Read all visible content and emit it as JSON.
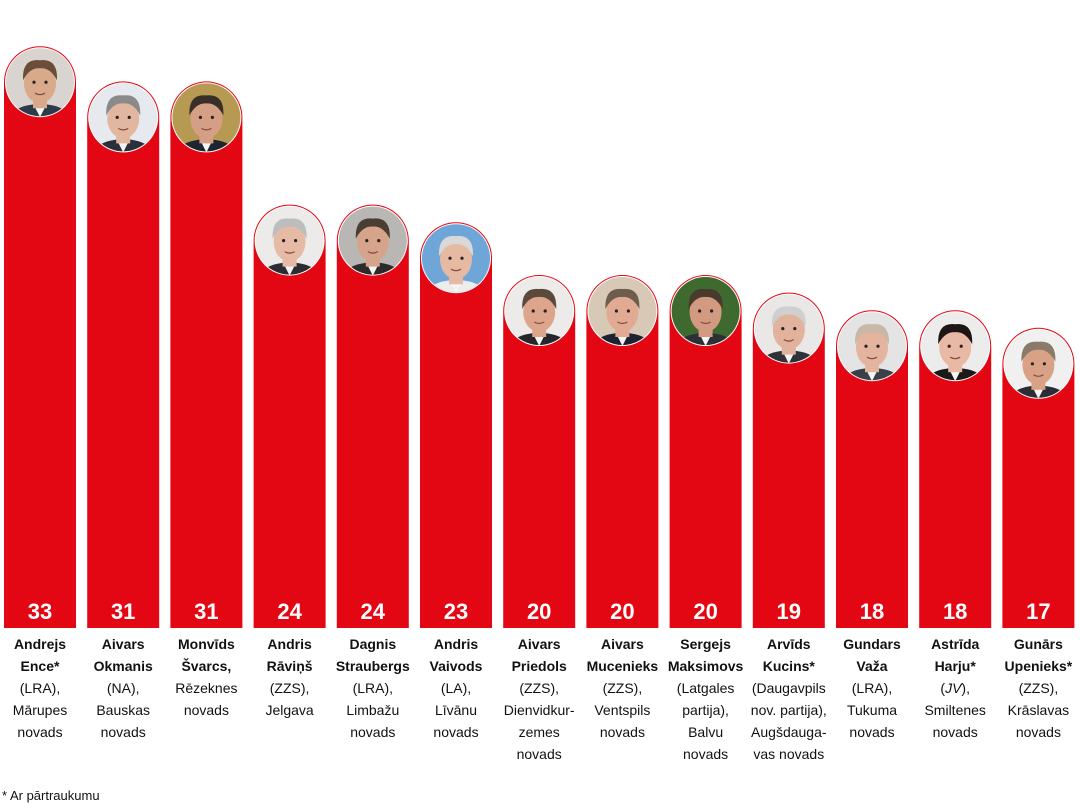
{
  "chart_data": {
    "type": "bar",
    "title": "",
    "xlabel": "",
    "ylabel": "",
    "ylim": [
      0,
      33
    ],
    "bar_color": "#e30613",
    "categories": [
      "Andrejs Ence*",
      "Aivars Okmanis",
      "Monvīds Švarcs,",
      "Andris Rāviņš",
      "Dagnis Straubergs",
      "Andris Vaivods",
      "Aivars Priedols",
      "Aivars Mucenieks",
      "Sergejs Maksimovs",
      "Arvīds Kucins*",
      "Gundars Važa",
      "Astrīda Harju*",
      "Gunārs Upenieks*"
    ],
    "values": [
      33,
      31,
      31,
      24,
      24,
      23,
      20,
      20,
      20,
      19,
      18,
      18,
      17
    ],
    "people": [
      {
        "name_l1": "Andrejs",
        "name_l2": "Ence*",
        "party": "(LRA),",
        "place_l1": "Mārupes",
        "place_l2": "novads",
        "place_l3": "",
        "photo_bg": "#d9d4cf",
        "hair": "#6b4e3a",
        "skin": "#d9a98c",
        "suit": "#2d3a4a"
      },
      {
        "name_l1": "Aivars",
        "name_l2": "Okmanis",
        "party": "(NA),",
        "place_l1": "Bauskas",
        "place_l2": "novads",
        "place_l3": "",
        "photo_bg": "#e6e9ee",
        "hair": "#8a8a8a",
        "skin": "#e2b7a0",
        "suit": "#2a2f3a"
      },
      {
        "name_l1": "Monvīds",
        "name_l2": "Švarcs,",
        "party": "",
        "place_l1": "Rēzeknes",
        "place_l2": "novads",
        "place_l3": "",
        "photo_bg": "#b79a52",
        "hair": "#3a2f28",
        "skin": "#d59f86",
        "suit": "#1f2530"
      },
      {
        "name_l1": "Andris",
        "name_l2": "Rāviņš",
        "party": "(ZZS),",
        "place_l1": "Jelgava",
        "place_l2": "",
        "place_l3": "",
        "photo_bg": "#ecebea",
        "hair": "#bdbdbd",
        "skin": "#e5bba6",
        "suit": "#2b2b33"
      },
      {
        "name_l1": "Dagnis",
        "name_l2": "Straubergs",
        "party": "(LRA),",
        "place_l1": "Limbažu",
        "place_l2": "novads",
        "place_l3": "",
        "photo_bg": "#b8b7b3",
        "hair": "#4a3d33",
        "skin": "#d6a48a",
        "suit": "#2d2a2a"
      },
      {
        "name_l1": "Andris",
        "name_l2": "Vaivods",
        "party": "(LA),",
        "place_l1": "Līvānu",
        "place_l2": "novads",
        "place_l3": "",
        "photo_bg": "#6fa6d8",
        "hair": "#d9d9d9",
        "skin": "#e6b9a3",
        "suit": "#ececec"
      },
      {
        "name_l1": "Aivars",
        "name_l2": "Priedols",
        "party": "(ZZS),",
        "place_l1": "Dienvidkur-",
        "place_l2": "zemes",
        "place_l3": "novads",
        "photo_bg": "#ecebe9",
        "hair": "#5b4a3c",
        "skin": "#dda58c",
        "suit": "#24262c"
      },
      {
        "name_l1": "Aivars",
        "name_l2": "Mucenieks",
        "party": "(ZZS),",
        "place_l1": "Ventspils",
        "place_l2": "novads",
        "place_l3": "",
        "photo_bg": "#d8c9b6",
        "hair": "#6e5c4c",
        "skin": "#e0ab92",
        "suit": "#1d2230"
      },
      {
        "name_l1": "Sergejs",
        "name_l2": "Maksimovs",
        "party": "(Latgales",
        "place_l1": "partija),",
        "place_l2": "Balvu",
        "place_l3": "novads",
        "photo_bg": "#3f6a2f",
        "hair": "#4a3a2c",
        "skin": "#d29a80",
        "suit": "#2c2f36"
      },
      {
        "name_l1": "Arvīds",
        "name_l2": "Kucins*",
        "party": "(Daugavpils",
        "place_l1": "nov. partija),",
        "place_l2": "Augšdauga-",
        "place_l3": "vas novads",
        "photo_bg": "#e9e8e6",
        "hair": "#cfcfcf",
        "skin": "#e1b39c",
        "suit": "#2e3138"
      },
      {
        "name_l1": "Gundars",
        "name_l2": "Važa",
        "party": "(LRA),",
        "place_l1": "Tukuma",
        "place_l2": "novads",
        "place_l3": "",
        "photo_bg": "#e4e4e4",
        "hair": "#c9b8a6",
        "skin": "#e3b49e",
        "suit": "#3a3f48"
      },
      {
        "name_l1": "Astrīda",
        "name_l2": "Harju*",
        "party": "(JV),",
        "place_l1": "Smiltenes",
        "place_l2": "novads",
        "place_l3": "",
        "photo_bg": "#ececec",
        "hair": "#1e1614",
        "skin": "#e8b9a4",
        "suit": "#1a1a1a"
      },
      {
        "name_l1": "Gunārs",
        "name_l2": "Upenieks*",
        "party": "(ZZS),",
        "place_l1": "Krāslavas",
        "place_l2": "novads",
        "place_l3": "",
        "photo_bg": "#f0f0f0",
        "hair": "#8a7a6a",
        "skin": "#d9a287",
        "suit": "#2a2d36"
      }
    ]
  },
  "footnote": "* Ar pārtraukumu"
}
